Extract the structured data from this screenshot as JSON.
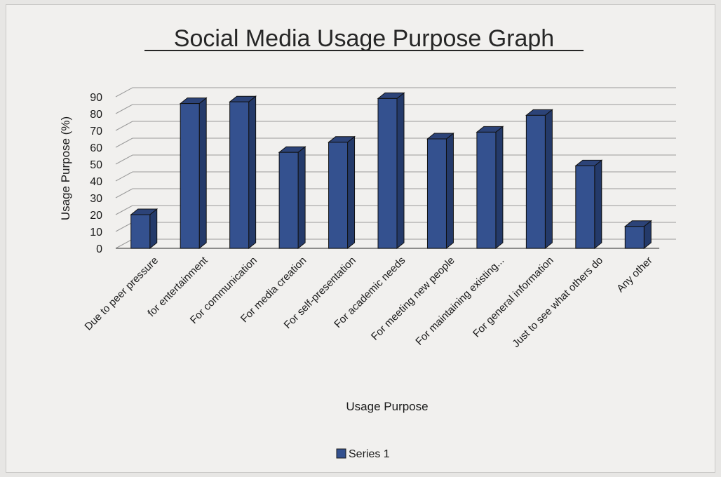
{
  "chart_data": {
    "type": "bar",
    "title": "Social  Media Usage Purpose Graph",
    "xlabel": "Usage Purpose",
    "ylabel": "Usage Purpose (%)",
    "ylim": [
      0,
      90
    ],
    "yticks": [
      0,
      10,
      20,
      30,
      40,
      50,
      60,
      70,
      80,
      90
    ],
    "grid": true,
    "legend_position": "bottom",
    "categories": [
      "Due to peer pressure",
      "for entertainment",
      "For communication",
      "For media creation",
      "For self-presentation",
      "For academic needs",
      "For meeting new people",
      "For maintaining existing...",
      "For general information",
      "Just to see what others do",
      "Any other"
    ],
    "series": [
      {
        "name": "Series 1",
        "values": [
          20,
          86,
          87,
          57,
          63,
          89,
          65,
          69,
          79,
          49,
          13
        ]
      }
    ],
    "colors": {
      "bar_front": "#34518f",
      "bar_side": "#243a6a",
      "bar_top": "#2c4378",
      "grid": "#9a9a9a"
    }
  }
}
